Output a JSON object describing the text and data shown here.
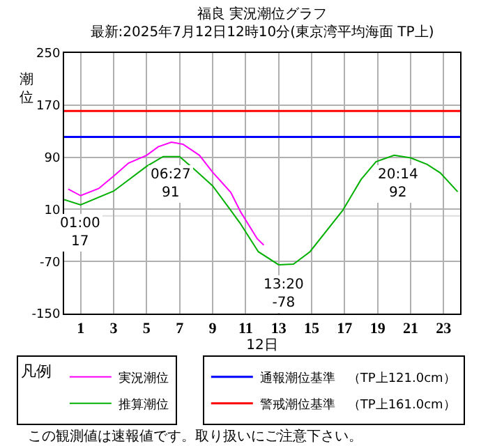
{
  "chart_data": {
    "type": "line",
    "title": "福良 実況潮位グラフ",
    "subtitle": "最新:2025年7月12日12時10分(東京湾平均海面 TP上)",
    "ylabel": "潮位",
    "xlabel": "12日",
    "legend_title": "凡例",
    "xlim": [
      0,
      24
    ],
    "xticks": [
      1,
      3,
      5,
      7,
      9,
      11,
      13,
      15,
      17,
      19,
      21,
      23
    ],
    "ylim": [
      -150,
      250
    ],
    "yticks": [
      -150,
      -70,
      10,
      90,
      170,
      250
    ],
    "grid": true,
    "legend": "bottom",
    "marker": "none",
    "line_style": "solid",
    "series": [
      {
        "name": "実況潮位",
        "color": "#ff00ff",
        "x": [
          0.25,
          1,
          2.1,
          3,
          3.9,
          5,
          5.7,
          6.5,
          7.2,
          8.2,
          9,
          10.1,
          10.7,
          11.7,
          12.1
        ],
        "values": [
          41,
          31,
          42,
          61,
          81,
          93,
          106,
          113,
          110,
          93,
          67,
          36,
          6,
          -35,
          -45
        ]
      },
      {
        "name": "推算潮位",
        "color": "#00b000",
        "x": [
          0,
          1,
          3,
          5,
          6,
          7,
          8,
          9,
          10,
          10.66,
          11.77,
          13,
          13.9,
          14.9,
          16.9,
          18,
          18.9,
          20,
          21,
          22,
          22.8,
          23.85
        ],
        "values": [
          25,
          17,
          38,
          76,
          91,
          91,
          69,
          46,
          12,
          -11,
          -55,
          -75,
          -74,
          -55,
          9,
          56,
          83,
          93,
          89,
          79,
          66,
          37
        ]
      }
    ],
    "ref_lines": [
      {
        "axis": "y",
        "value": 121,
        "label": "通報潮位基準　（TP上121.0cm）",
        "color": "#0000ff"
      },
      {
        "axis": "y",
        "value": 161,
        "label": "警戒潮位基準　（TP上161.0cm）",
        "color": "#ff0000"
      },
      {
        "axis": "y",
        "value": 0,
        "color": "#dddddd"
      }
    ],
    "annotations": [
      {
        "text": "01:00\n17",
        "x": 1,
        "y": 17
      },
      {
        "text": "06:27\n91",
        "x": 6.45,
        "y": 91
      },
      {
        "text": "13:20\n-78",
        "x": 13.33,
        "y": -78
      },
      {
        "text": "20:14\n92",
        "x": 20.23,
        "y": 92
      },
      "この観測値は速報値です。取り扱いにご注意下さい。"
    ]
  }
}
